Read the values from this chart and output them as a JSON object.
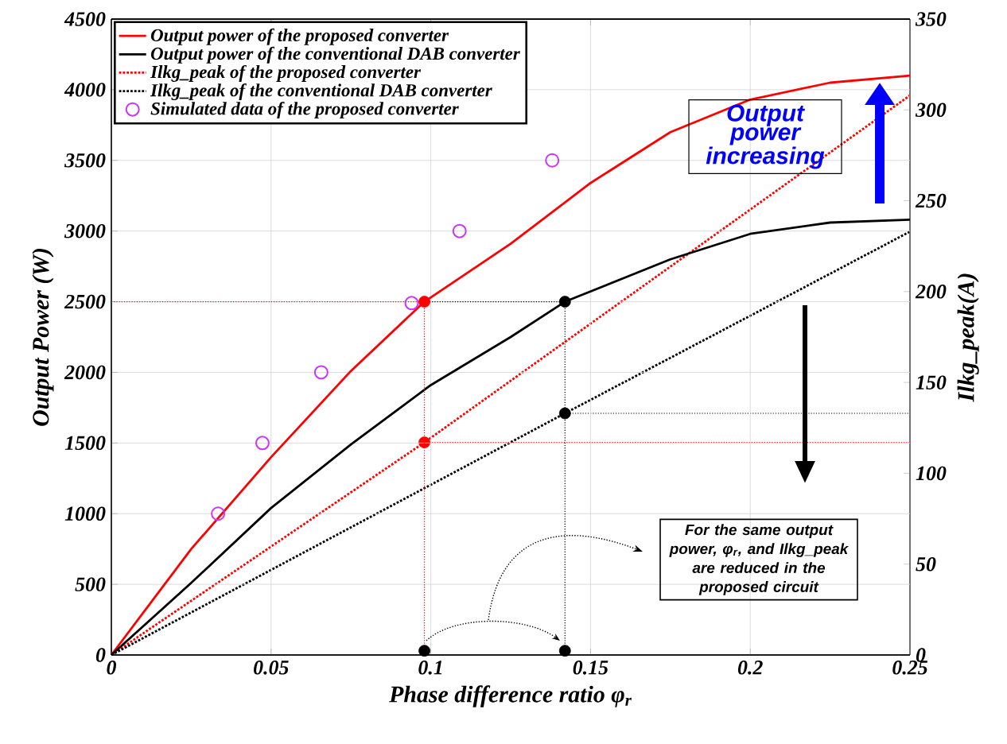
{
  "chart_data": {
    "type": "line",
    "xlabel": "Phase difference ratio φ$_{r}$",
    "ylabel": "Output Power (W)",
    "y2label": "Ilkg_peak(A)",
    "xlim": [
      0,
      0.25
    ],
    "xticks": [
      0,
      0.05,
      0.1,
      0.15,
      0.2,
      0.25
    ],
    "ylim": [
      0,
      4500
    ],
    "yticks": [
      0,
      500,
      1000,
      1500,
      2000,
      2500,
      3000,
      3500,
      4000,
      4500
    ],
    "y2lim": [
      0,
      350
    ],
    "y2ticks": [
      0,
      50,
      100,
      150,
      200,
      250,
      300,
      350
    ],
    "grid": true,
    "legend": "top left",
    "series": [
      {
        "name": "Output power of the proposed converter",
        "color": "#ff0000",
        "line_style": "solid",
        "x": [
          0,
          0.025,
          0.05,
          0.075,
          0.098,
          0.125,
          0.15,
          0.175,
          0.2,
          0.225,
          0.25
        ],
        "values": [
          0,
          750,
          1400,
          2010,
          2500,
          2910,
          3340,
          3700,
          3930,
          4050,
          4100
        ]
      },
      {
        "name": "Output power of the conventional DAB converter",
        "color": "#000000",
        "line_style": "solid",
        "x": [
          0,
          0.025,
          0.05,
          0.075,
          0.1,
          0.125,
          0.142,
          0.175,
          0.2,
          0.225,
          0.25
        ],
        "values": [
          0,
          510,
          1040,
          1490,
          1910,
          2250,
          2500,
          2800,
          2980,
          3060,
          3080
        ]
      },
      {
        "name": "Ilkg_peak of the proposed converter",
        "color": "#ff0000",
        "line_style": "dotted",
        "axis": "y2",
        "x": [
          0,
          0.098,
          0.25
        ],
        "values": [
          0,
          117,
          308
        ]
      },
      {
        "name": "Ilkg_peak of the conventional DAB converter",
        "color": "#000000",
        "line_style": "dotted",
        "axis": "y2",
        "x": [
          0,
          0.142,
          0.25
        ],
        "values": [
          0,
          133,
          233
        ]
      },
      {
        "name": "Simulated data of the proposed converter",
        "type": "scatter",
        "marker": "circle",
        "color": "#cc33ff",
        "x": [
          0.0334,
          0.0473,
          0.0657,
          0.094,
          0.109,
          0.138
        ],
        "values": [
          1000,
          1500,
          2000,
          2490,
          3000,
          3500
        ]
      },
      {
        "color": "#ff0000",
        "line_style": "dotted",
        "x": [
          0,
          0.098,
          0.098
        ],
        "values": [
          2500,
          2500,
          0
        ]
      },
      {
        "color": "#000000",
        "line_style": "dotted",
        "x": [
          0.098,
          0.142,
          0.142
        ],
        "values": [
          2500,
          2500,
          0
        ]
      },
      {
        "color": "#ff0000",
        "line_style": "dotted",
        "axis": "y2",
        "x": [
          0.098,
          0.25
        ],
        "values": [
          117,
          117
        ]
      },
      {
        "color": "#000000",
        "line_style": "dotted",
        "axis": "y2",
        "x": [
          0.142,
          0.25
        ],
        "values": [
          133,
          133
        ]
      },
      {
        "type": "scatter",
        "marker": "circle",
        "color": "#ff0000",
        "x": [
          0.098
        ],
        "values": [
          2500
        ]
      },
      {
        "type": "scatter",
        "marker": "circle",
        "color": "#ff0000",
        "axis": "y2",
        "x": [
          0.098
        ],
        "values": [
          117
        ]
      },
      {
        "type": "scatter",
        "marker": "circle",
        "color": "#000000",
        "x": [
          0.142
        ],
        "values": [
          2500
        ]
      },
      {
        "type": "scatter",
        "marker": "circle",
        "color": "#000000",
        "axis": "y2",
        "x": [
          0.142
        ],
        "values": [
          133
        ]
      },
      {
        "type": "scatter",
        "marker": "circle",
        "color": "#000000",
        "x": [
          0.098,
          0.142
        ],
        "values": [
          30,
          30
        ]
      }
    ],
    "annotations": [
      "Output power increasing",
      "For the same output power, φ$_{r}$, and Ilkg_peak are reduced in the proposed circuit"
    ]
  }
}
